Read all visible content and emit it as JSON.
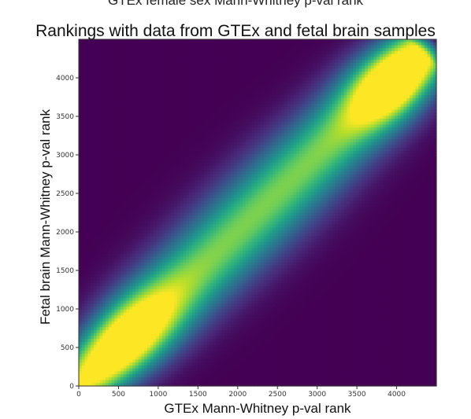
{
  "header_partial": "GTEx  female sex Mann-Whitney p-val rank",
  "chart_data": {
    "type": "heatmap",
    "title": "Rankings with data from GTEx and fetal brain samples",
    "xlabel": "GTEx Mann-Whitney p-val rank",
    "ylabel": "Fetal brain Mann-Whitney p-val rank",
    "xlim": [
      0,
      4500
    ],
    "ylim": [
      0,
      4500
    ],
    "xticks": [
      "0",
      "500",
      "1000",
      "1500",
      "2000",
      "2500",
      "3000",
      "3500",
      "4000"
    ],
    "yticks": [
      "0",
      "500",
      "1000",
      "1500",
      "2000",
      "2500",
      "3000",
      "3500",
      "4000"
    ],
    "colormap": "viridis",
    "density_ridge": "high density along the diagonal x = y, peaking near (500, 500) and (4000, 4000), lower in the middle",
    "colors": {
      "low": "#440154",
      "mid": "#21918c",
      "high": "#fde725"
    }
  }
}
